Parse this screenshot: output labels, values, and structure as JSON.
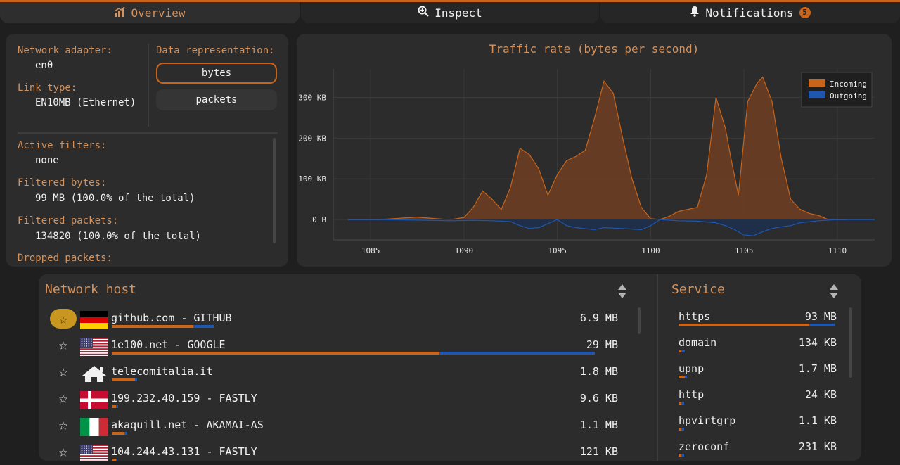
{
  "tabs": {
    "overview": "Overview",
    "inspect": "Inspect",
    "notifications": "Notifications",
    "notifications_badge": "5"
  },
  "info": {
    "adapter_label": "Network adapter:",
    "adapter_value": "en0",
    "link_label": "Link type:",
    "link_value": "EN10MB (Ethernet)",
    "data_repr_label": "Data representation:",
    "bytes_btn": "bytes",
    "packets_btn": "packets",
    "filters_label": "Active filters:",
    "filters_value": "none",
    "fbytes_label": "Filtered bytes:",
    "fbytes_value": "99 MB (100.0% of the total)",
    "fpackets_label": "Filtered packets:",
    "fpackets_value": "134820 (100.0% of the total)",
    "dropped_label": "Dropped packets:"
  },
  "chart_data": {
    "type": "area",
    "title": "Traffic rate (bytes per second)",
    "legend": [
      "Incoming",
      "Outgoing"
    ],
    "legend_position": "top-right",
    "x_ticks": [
      1085,
      1090,
      1095,
      1100,
      1105,
      1110
    ],
    "y_ticks": [
      "300 KB",
      "200 KB",
      "100 KB",
      "0 B"
    ],
    "xlim": [
      1083,
      1112
    ],
    "ylim": [
      -50000,
      370000
    ],
    "grid": true,
    "colors": {
      "incoming": "#c8651b",
      "outgoing": "#1f56b0"
    },
    "series": [
      {
        "name": "Incoming",
        "x": [
          1083.8,
          1084.5,
          1085.5,
          1086.5,
          1087.5,
          1088.5,
          1089.3,
          1090.0,
          1090.5,
          1091.0,
          1091.5,
          1092.0,
          1092.5,
          1093.0,
          1093.5,
          1094.0,
          1094.5,
          1095.0,
          1095.5,
          1096.0,
          1096.5,
          1097.0,
          1097.5,
          1098.0,
          1098.5,
          1099.0,
          1099.5,
          1100.0,
          1100.5,
          1101.0,
          1101.5,
          1102.0,
          1102.5,
          1103.0,
          1103.5,
          1104.0,
          1104.3,
          1104.7,
          1105.2,
          1105.7,
          1106.0,
          1106.5,
          1107.0,
          1107.5,
          1108.0,
          1108.5,
          1109.0,
          1109.5,
          1110.0,
          1110.5
        ],
        "y": [
          0,
          0,
          0,
          3000,
          6000,
          2000,
          0,
          5000,
          30000,
          70000,
          50000,
          25000,
          80000,
          175000,
          160000,
          125000,
          60000,
          110000,
          145000,
          155000,
          170000,
          250000,
          340000,
          310000,
          200000,
          100000,
          30000,
          2000,
          0,
          8000,
          20000,
          25000,
          30000,
          110000,
          300000,
          225000,
          150000,
          60000,
          290000,
          335000,
          350000,
          290000,
          150000,
          50000,
          25000,
          15000,
          10000,
          0,
          0,
          0
        ]
      },
      {
        "name": "Outgoing",
        "x": [
          1083.8,
          1085.5,
          1087.5,
          1089.3,
          1090.5,
          1091.5,
          1092.5,
          1093.0,
          1093.5,
          1094.0,
          1094.5,
          1095.0,
          1095.5,
          1096.0,
          1097.0,
          1097.5,
          1098.5,
          1099.5,
          1100.0,
          1100.5,
          1101.5,
          1102.5,
          1103.5,
          1104.0,
          1104.5,
          1105.0,
          1105.5,
          1106.0,
          1106.5,
          1107.0,
          1107.5,
          1108.0,
          1109.0,
          1110.0,
          1111.0,
          1112.0
        ],
        "y": [
          0,
          0,
          -1500,
          -3000,
          -2000,
          -3000,
          -5000,
          -15000,
          -22000,
          -20000,
          -10000,
          0,
          -15000,
          -20000,
          -25000,
          -20000,
          -22000,
          -25000,
          -15000,
          0,
          -3000,
          -4000,
          -8000,
          -15000,
          -25000,
          -38000,
          -40000,
          -30000,
          -22000,
          -18000,
          -15000,
          -8000,
          -3000,
          0,
          0,
          0
        ]
      }
    ]
  },
  "hosts": {
    "title": "Network host",
    "rows": [
      {
        "name": "github.com - GITHUB",
        "amount": "6.9 MB",
        "flag": "germany-flag",
        "fav": true,
        "in_frac": 0.16,
        "out_frac": 0.04
      },
      {
        "name": "1e100.net - GOOGLE",
        "amount": "29 MB",
        "flag": "us-flag",
        "fav": false,
        "in_frac": 0.645,
        "out_frac": 0.305
      },
      {
        "name": "telecomitalia.it",
        "amount": "1.8 MB",
        "flag": "home-icon",
        "fav": false,
        "in_frac": 0.045,
        "out_frac": 0.005
      },
      {
        "name": "199.232.40.159 - FASTLY",
        "amount": "9.6 KB",
        "flag": "denmark-flag",
        "fav": false,
        "in_frac": 0.008,
        "out_frac": 0.004
      },
      {
        "name": "akaquill.net - AKAMAI-AS",
        "amount": "1.1 MB",
        "flag": "italy-flag",
        "fav": false,
        "in_frac": 0.025,
        "out_frac": 0.005
      },
      {
        "name": "104.244.43.131 - FASTLY",
        "amount": "121 KB",
        "flag": "us-flag",
        "fav": false,
        "in_frac": 0.008,
        "out_frac": 0.003
      }
    ]
  },
  "services": {
    "title": "Service",
    "rows": [
      {
        "name": "https",
        "amount": "93 MB",
        "in_frac": 0.84,
        "out_frac": 0.16
      },
      {
        "name": "domain",
        "amount": "134 KB",
        "in_frac": 0.02,
        "out_frac": 0.02
      },
      {
        "name": "upnp",
        "amount": "1.7 MB",
        "in_frac": 0.04,
        "out_frac": 0.005
      },
      {
        "name": "http",
        "amount": "24 KB",
        "in_frac": 0.02,
        "out_frac": 0.015
      },
      {
        "name": "hpvirtgrp",
        "amount": "1.1 KB",
        "in_frac": 0.02,
        "out_frac": 0.015
      },
      {
        "name": "zeroconf",
        "amount": "231 KB",
        "in_frac": 0.02,
        "out_frac": 0.015
      }
    ]
  }
}
